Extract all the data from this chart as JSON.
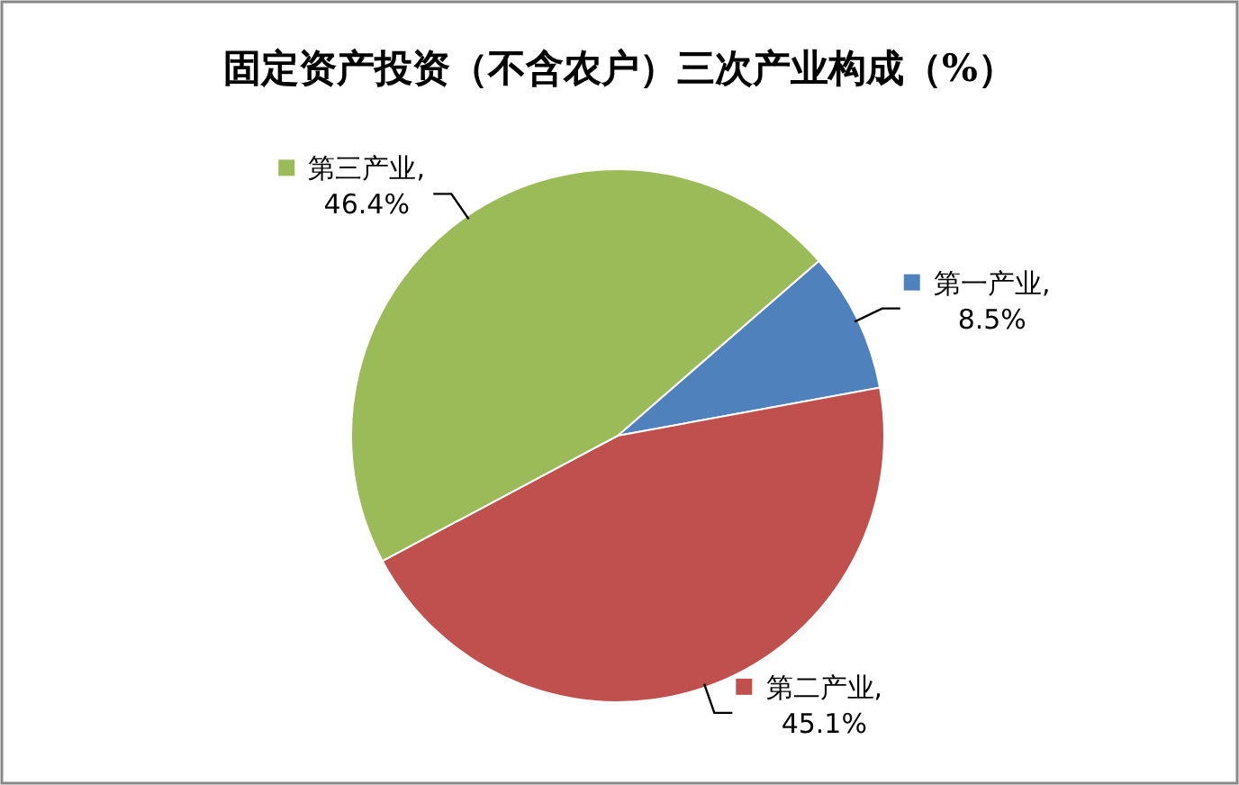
{
  "chart_data": {
    "type": "pie",
    "title": "固定资产投资（不含农户）三次产业构成（%）",
    "categories": [
      "第一产业",
      "第二产业",
      "第三产业"
    ],
    "values": [
      8.5,
      45.1,
      46.4
    ],
    "value_labels": [
      ",\n8.5%",
      ",\n45.1%",
      ",\n46.4%"
    ],
    "colors": [
      "#4f81bd",
      "#c0504d",
      "#9bbb59"
    ],
    "legend": "right"
  }
}
